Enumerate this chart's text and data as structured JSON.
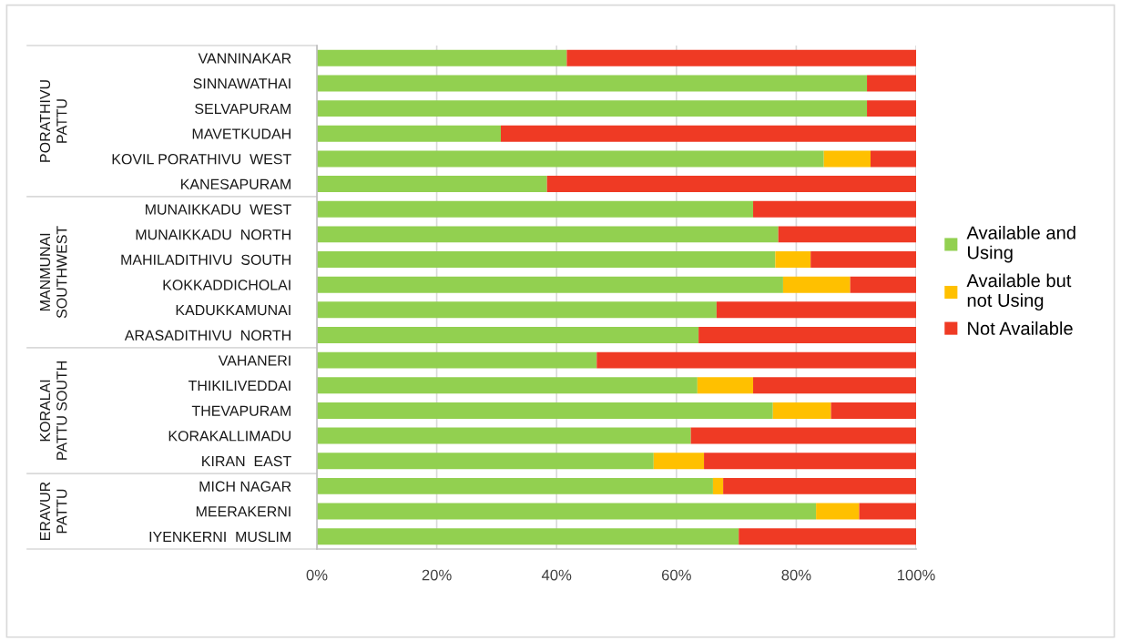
{
  "chart_data": {
    "type": "bar",
    "orientation": "horizontal",
    "stacked": true,
    "categories": [
      "VANNINAKAR",
      "SINNAWATHAI",
      "SELVAPURAM",
      "MAVETKUDAH",
      "KOVIL PORATHIVU  WEST",
      "KANESAPURAM",
      "MUNAIKKADU  WEST",
      "MUNAIKKADU  NORTH",
      "MAHILADITHIVU  SOUTH",
      "KOKKADDICHOLAI",
      "KADUKKAMUNAI",
      "ARASADITHIVU  NORTH",
      "VAHANERI",
      "THIKILIVEDDAI",
      "THEVAPURAM",
      "KORAKALLIMADU",
      "KIRAN  EAST",
      "MICH NAGAR",
      "MEERAKERNI",
      "IYENKERNI  MUSLIM"
    ],
    "series": [
      {
        "name": "Available and\nUsing",
        "color": "#92d050",
        "values": [
          41.7,
          91.8,
          91.8,
          30.7,
          84.6,
          38.4,
          72.8,
          77.0,
          76.5,
          77.8,
          66.7,
          63.7,
          46.7,
          63.5,
          76.1,
          62.4,
          56.2,
          66.1,
          83.3,
          70.4
        ]
      },
      {
        "name": "Available but\nnot Using",
        "color": "#ffc000",
        "values": [
          0,
          0,
          0,
          0,
          7.8,
          0,
          0,
          0,
          5.9,
          11.2,
          0,
          0,
          0,
          9.3,
          9.7,
          0,
          8.4,
          1.7,
          7.2,
          0
        ]
      },
      {
        "name": "Not Available",
        "color": "#ef3a24",
        "values": [
          58.3,
          8.2,
          8.2,
          69.3,
          7.6,
          61.6,
          27.2,
          23.0,
          17.6,
          11.0,
          33.3,
          36.3,
          53.3,
          27.2,
          14.2,
          37.6,
          35.4,
          32.2,
          9.5,
          29.6
        ]
      }
    ],
    "xlim": [
      0,
      100
    ],
    "xticks": [
      {
        "value": 0,
        "label": "0%"
      },
      {
        "value": 20,
        "label": "20%"
      },
      {
        "value": 40,
        "label": "40%"
      },
      {
        "value": 60,
        "label": "60%"
      },
      {
        "value": 80,
        "label": "80%"
      },
      {
        "value": 100,
        "label": "100%"
      }
    ],
    "grid": "x",
    "legend": "right",
    "annotations": [
      "PORATHIVU\nPATTU",
      "MANMUNAI\nSOUTHWEST",
      "KORALAI\nPATTU SOUTH",
      "ERAVUR\nPATTU"
    ]
  }
}
